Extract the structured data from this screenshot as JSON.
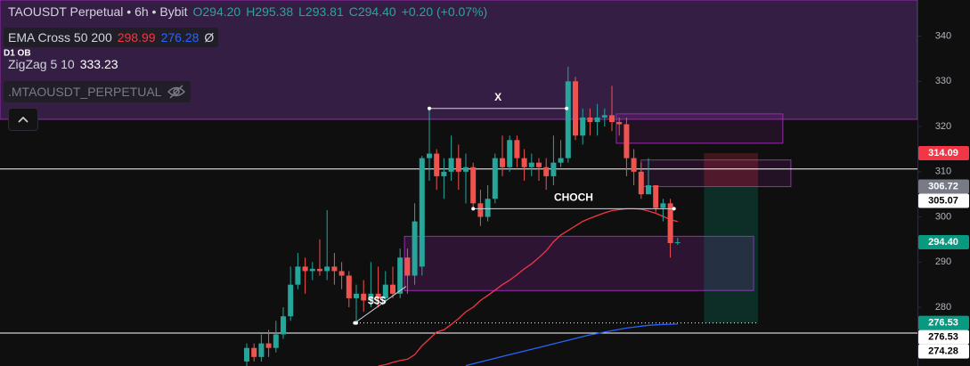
{
  "chart_data": {
    "type": "candlestick",
    "title": "TAOUSDT Perpetual • 6h • Bybit",
    "legend_ohlc": {
      "open": "O294.20",
      "high": "H295.38",
      "low": "L293.81",
      "close": "C294.40",
      "change": "+0.20 (+0.07%)"
    },
    "indicators": [
      {
        "name": "EMA Cross 50 200",
        "values": [
          298.99,
          276.28
        ],
        "colors": [
          "#f23645",
          "#2962ff"
        ],
        "extra": "Ø"
      },
      {
        "name": "ZigZag 5 10",
        "values": [
          333.23
        ],
        "colors": [
          "#ffffff"
        ]
      },
      {
        "name": ".MTAOUSDT_PERPETUAL"
      }
    ],
    "categories": [
      null,
      null,
      null,
      null,
      null,
      null,
      null,
      null,
      null,
      null,
      null,
      null,
      null,
      null,
      null,
      null,
      null,
      null,
      null,
      null,
      null,
      null,
      null,
      null,
      null,
      null,
      null,
      null,
      null,
      null,
      null,
      null,
      null,
      null,
      null,
      null,
      null,
      null,
      null,
      null,
      null,
      null,
      null,
      null,
      null,
      null,
      null,
      null,
      null,
      null,
      null,
      null,
      null,
      null,
      null,
      null,
      null,
      null,
      null,
      null
    ],
    "ohlc": {
      "open": [
        268,
        271,
        269,
        272,
        271,
        274,
        278,
        285,
        289,
        288,
        288.5,
        288,
        289,
        288,
        287,
        282,
        283,
        281.5,
        283,
        282,
        285,
        283,
        291,
        287,
        289,
        313,
        314,
        309,
        310,
        313,
        310,
        311,
        303,
        300,
        304,
        313,
        311,
        317,
        313,
        311,
        312,
        311,
        309,
        312,
        313,
        330,
        318,
        322,
        321,
        322,
        322.5,
        321,
        320.5,
        313,
        310,
        305,
        307,
        302,
        303,
        294.2
      ],
      "high": [
        272,
        272,
        274,
        275,
        277,
        280,
        289,
        292,
        291,
        290,
        295,
        301.5,
        292,
        290,
        288,
        285,
        286,
        290,
        289,
        288,
        289,
        293,
        293,
        303,
        313.5,
        324,
        315,
        313,
        318,
        316,
        314,
        312,
        306,
        307,
        314,
        318,
        318,
        318,
        315,
        314,
        313,
        313,
        318,
        317,
        333.23,
        331,
        324,
        324,
        325,
        324,
        329,
        322,
        322,
        315,
        312,
        313,
        307,
        304,
        304,
        295.38
      ],
      "low": [
        267,
        268,
        268,
        269,
        270,
        273,
        277,
        284,
        283,
        286,
        287,
        286,
        285,
        284,
        280,
        276.53,
        279,
        280,
        280,
        281,
        282,
        282,
        283,
        285,
        287,
        308,
        306,
        304,
        308,
        306,
        303,
        301.8,
        298,
        299,
        303,
        309,
        310,
        311,
        308,
        309,
        308,
        306,
        307,
        311,
        312,
        317,
        316,
        318,
        318,
        320,
        319,
        318,
        309,
        307,
        304,
        305,
        301,
        299,
        291,
        293.81
      ],
      "close": [
        271,
        269,
        272,
        271,
        274,
        278,
        285,
        289,
        288,
        288.5,
        288,
        289,
        288,
        287,
        282,
        283,
        281.5,
        283,
        282,
        285,
        283,
        291,
        287,
        299,
        313,
        314,
        309,
        310,
        313,
        310,
        311,
        303,
        300,
        304,
        313,
        311,
        317,
        313,
        311,
        312,
        311,
        309,
        312,
        313,
        330,
        318,
        322,
        321,
        322,
        322.5,
        321,
        320.5,
        313,
        310,
        305,
        307,
        302,
        303,
        294.2,
        294.4
      ],
      "up_color": "#26a69a",
      "down_color": "#ef5350"
    },
    "lines": [
      {
        "color": "#f23645",
        "values": [
          null,
          null,
          null,
          null,
          null,
          null,
          null,
          null,
          null,
          null,
          null,
          null,
          null,
          null,
          null,
          null,
          null,
          null,
          267,
          267.3,
          267.8,
          268.2,
          268.5,
          269.5,
          271.5,
          273,
          274.5,
          275,
          276.2,
          277.5,
          279,
          280,
          281.5,
          282.6,
          283.8,
          285,
          286,
          287.2,
          288.5,
          289.6,
          291,
          292.5,
          294.5,
          296,
          297,
          298,
          299,
          299.7,
          300.3,
          300.9,
          301.4,
          301.6,
          301.8,
          301.8,
          301.7,
          301.3,
          300.8,
          300.1,
          299.4,
          298.99
        ]
      },
      {
        "color": "#2962ff",
        "values": [
          null,
          null,
          null,
          null,
          null,
          null,
          null,
          null,
          null,
          null,
          null,
          null,
          null,
          null,
          null,
          null,
          null,
          null,
          null,
          null,
          null,
          null,
          null,
          null,
          null,
          null,
          null,
          null,
          null,
          null,
          267.1,
          267.5,
          267.9,
          268.3,
          268.7,
          269.1,
          269.5,
          269.9,
          270.3,
          270.7,
          271.1,
          271.5,
          271.9,
          272.3,
          272.7,
          273.1,
          273.5,
          273.9,
          274.2,
          274.5,
          274.8,
          275.1,
          275.4,
          275.6,
          275.8,
          276,
          276.1,
          276.2,
          276.25,
          276.28
        ]
      }
    ],
    "ylim": [
      267,
      348
    ],
    "yticks": [
      280,
      290,
      300,
      310,
      320,
      330,
      340
    ],
    "hlines": [
      310.6,
      274.28
    ],
    "zones": [
      {
        "x": [
          -34,
          92
        ],
        "y": [
          321.6,
          348
        ],
        "fill": "rgba(126,60,170,0.35)",
        "stroke": "#9c27b0",
        "label": "D1 OB"
      },
      {
        "x": [
          50.6,
          73.4
        ],
        "y": [
          316.3,
          322.8
        ],
        "fill": "rgba(156,39,176,0.15)",
        "stroke": "#9c27b0"
      },
      {
        "x": [
          54,
          74.5
        ],
        "y": [
          306.7,
          312.6
        ],
        "fill": "rgba(156,39,176,0.15)",
        "stroke": "#9c27b0"
      },
      {
        "x": [
          21.6,
          69.4
        ],
        "y": [
          283.7,
          295.7
        ],
        "fill": "rgba(156,39,176,0.22)",
        "stroke": "#9c27b0"
      },
      {
        "x": [
          62.6,
          70
        ],
        "y": [
          306.72,
          314.09
        ],
        "fill": "rgba(242,54,69,0.22)"
      },
      {
        "x": [
          62.6,
          70
        ],
        "y": [
          276.53,
          306.72
        ],
        "fill": "rgba(8,153,129,0.22)"
      }
    ],
    "annotations": [
      {
        "text": "X",
        "x": [
          25,
          43.8
        ],
        "y": [
          324,
          324
        ]
      },
      {
        "text": "CHOCH",
        "x": [
          31,
          58.5
        ],
        "y": [
          301.8,
          301.8
        ]
      },
      {
        "text": "$$$",
        "x": [
          14.8,
          21.8
        ],
        "y": [
          276.53,
          284.6
        ]
      }
    ],
    "zigzag_low": {
      "value": 276.53,
      "x": [
        15,
        70
      ]
    },
    "price_labels": [
      {
        "value": 314.09,
        "label": "314.09",
        "bg": "#f23645",
        "fg": "#ffffff"
      },
      {
        "value": 306.72,
        "label": "306.72",
        "bg": "#787b86",
        "fg": "#ffffff"
      },
      {
        "value": 305.07,
        "label": "305.07",
        "bg": "#ffffff",
        "fg": "#000000"
      },
      {
        "value": 294.4,
        "label": "294.40",
        "bg": "#089981",
        "fg": "#ffffff"
      },
      {
        "value": 276.53,
        "label": "276.53",
        "bg": "#089981",
        "fg": "#ffffff"
      },
      {
        "value": 276.53,
        "label": "276.53",
        "bg": "#ffffff",
        "fg": "#000000"
      },
      {
        "value": 274.28,
        "label": "274.28",
        "bg": "#ffffff",
        "fg": "#000000"
      }
    ]
  }
}
